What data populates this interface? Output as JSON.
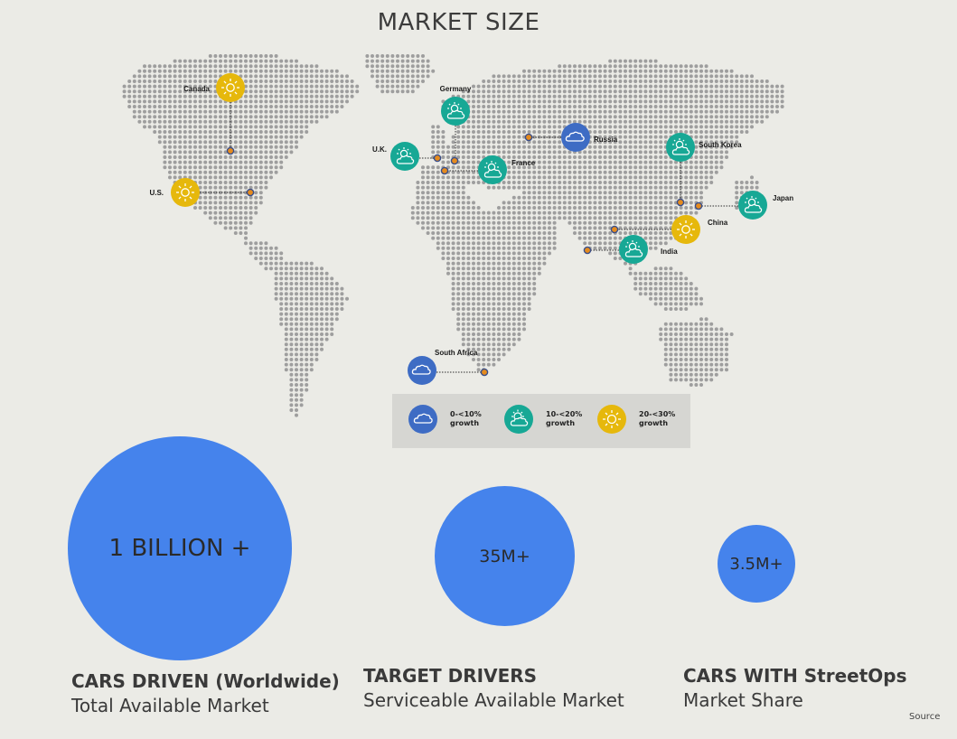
{
  "title": "MARKET SIZE",
  "colors": {
    "background": "#ebebe6",
    "dots": "#9e9e9e",
    "blue_badge": "#3e6cc4",
    "green_badge": "#17a895",
    "yellow_badge": "#e6b80c",
    "circle": "#4583ec",
    "marker": "#e58b1e",
    "legend_bg": "#d6d6d2"
  },
  "countries": [
    {
      "name": "Canada",
      "growth": "yellow",
      "icon": "sun-icon"
    },
    {
      "name": "U.S.",
      "growth": "yellow",
      "icon": "sun-icon"
    },
    {
      "name": "Germany",
      "growth": "green",
      "icon": "partly-cloudy-icon"
    },
    {
      "name": "U.K.",
      "growth": "green",
      "icon": "partly-cloudy-icon"
    },
    {
      "name": "France",
      "growth": "green",
      "icon": "partly-cloudy-icon"
    },
    {
      "name": "Russia",
      "growth": "blue",
      "icon": "cloud-icon"
    },
    {
      "name": "South Korea",
      "growth": "green",
      "icon": "partly-cloudy-icon"
    },
    {
      "name": "Japan",
      "growth": "green",
      "icon": "partly-cloudy-icon"
    },
    {
      "name": "China",
      "growth": "yellow",
      "icon": "sun-icon"
    },
    {
      "name": "India",
      "growth": "green",
      "icon": "partly-cloudy-icon"
    },
    {
      "name": "South Africa",
      "growth": "blue",
      "icon": "cloud-icon"
    }
  ],
  "legend": [
    {
      "range": "0-<10%",
      "word": "growth",
      "icon": "cloud-icon"
    },
    {
      "range": "10-<20%",
      "word": "growth",
      "icon": "partly-cloudy-icon"
    },
    {
      "range": "20-<30%",
      "word": "growth",
      "icon": "sun-icon"
    }
  ],
  "markets": [
    {
      "value": "1 BILLION +",
      "line1": "CARS DRIVEN (Worldwide)",
      "line2": "Total Available Market"
    },
    {
      "value": "35M+",
      "line1": "TARGET DRIVERS",
      "line2": "Serviceable Available Market"
    },
    {
      "value": "3.5M+",
      "line1": "CARS WITH StreetOps",
      "line2": "Market Share"
    }
  ],
  "source": "Source"
}
